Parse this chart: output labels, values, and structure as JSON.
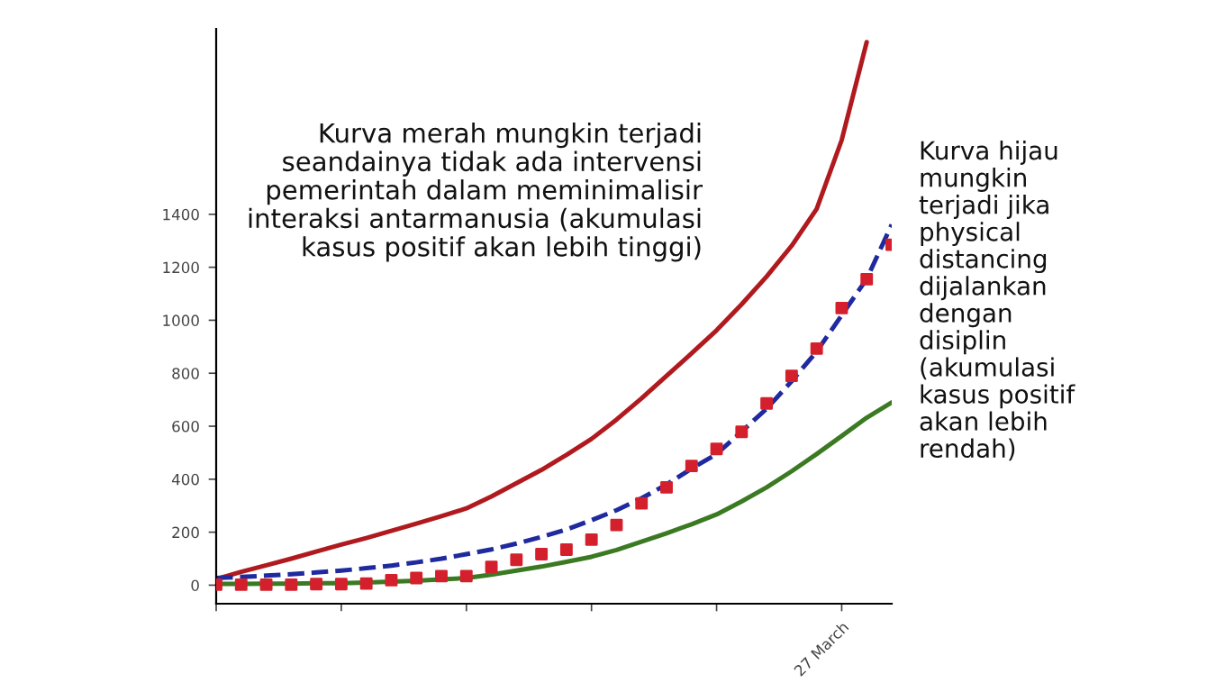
{
  "chart_data": {
    "type": "line",
    "categories": [
      null,
      null,
      null,
      null,
      null,
      null,
      null,
      null,
      null,
      null,
      null,
      null,
      null,
      null,
      null,
      null,
      null,
      null,
      null,
      null,
      null,
      null,
      null,
      null,
      null,
      "27 March",
      null,
      null
    ],
    "series": [
      {
        "color": "#b01a1f",
        "line_style": "solid",
        "values": [
          23,
          50,
          75,
          100,
          127,
          153,
          178,
          205,
          232,
          260,
          290,
          335,
          385,
          435,
          492,
          552,
          625,
          705,
          790,
          875,
          962,
          1060,
          1165,
          1281,
          1420,
          1680,
          2050,
          null
        ]
      },
      {
        "color": "#3b7a22",
        "line_style": "solid",
        "values": [
          5,
          5,
          6,
          6,
          7,
          7,
          10,
          13,
          17,
          22,
          27,
          40,
          55,
          70,
          88,
          107,
          133,
          164,
          196,
          230,
          267,
          316,
          369,
          430,
          495,
          563,
          632,
          690
        ]
      },
      {
        "color": "#1f2a9e",
        "line_style": "dashed",
        "values": [
          27,
          31,
          36,
          41,
          48,
          55,
          64,
          74,
          86,
          100,
          117,
          135,
          157,
          182,
          210,
          245,
          283,
          328,
          380,
          440,
          495,
          580,
          666,
          770,
          882,
          1019,
          1156,
          1361
        ]
      },
      {
        "type": "scatter",
        "color": "#d4202c",
        "marker": "square",
        "values": [
          2,
          2,
          2,
          2,
          4,
          4,
          6,
          19,
          27,
          34,
          34,
          69,
          96,
          117,
          134,
          172,
          227,
          309,
          369,
          450,
          514,
          579,
          686,
          790,
          893,
          1046,
          1155,
          1285
        ]
      }
    ],
    "ylim": [
      -70,
      2100
    ],
    "yticks": [
      0,
      200,
      400,
      600,
      800,
      1000,
      1200,
      1400
    ],
    "grid": false,
    "legend": false,
    "annotations": [
      "Kurva merah mungkin terjadi\nseandainya tidak ada intervensi\npemerintah dalam meminimalisir\ninteraksi antarmanusia (akumulasi\nkasus positif akan lebih tinggi)",
      "Kurva hijau\nmungkin\nterjadi jika\nphysical\ndistancing\ndijalankan\ndengan\ndisiplin\n(akumulasi\nkasus positif\nakan lebih\nrendah)"
    ]
  }
}
